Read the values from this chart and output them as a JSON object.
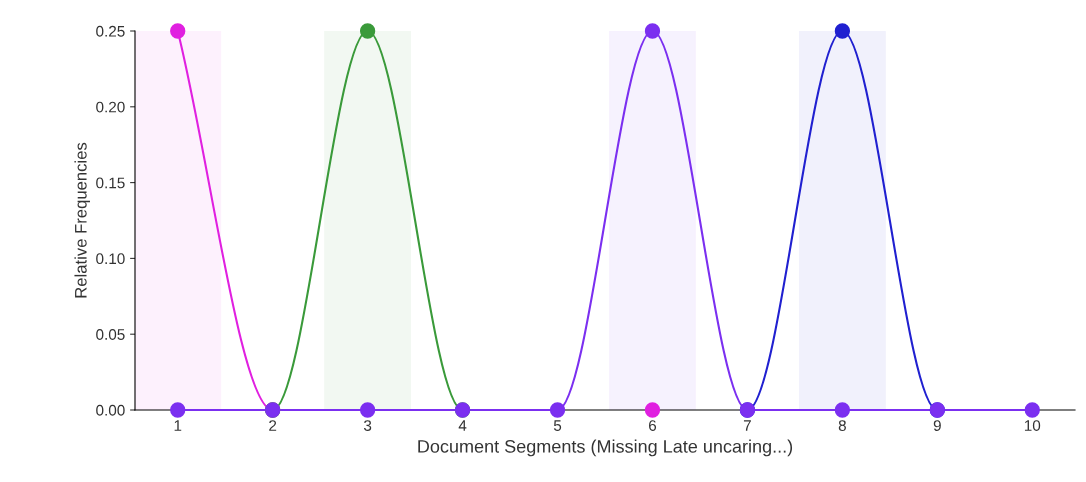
{
  "chart_data": {
    "type": "line",
    "xlabel": "Document Segments (Missing Late uncaring...)",
    "ylabel": "Relative Frequencies",
    "x": [
      1,
      2,
      3,
      4,
      5,
      6,
      7,
      8,
      9,
      10
    ],
    "series": [
      {
        "color": "#e020e0",
        "values": [
          0.25,
          0,
          null,
          null,
          null,
          0,
          null,
          null,
          null,
          null
        ]
      },
      {
        "color": "#3a9a3a",
        "values": [
          null,
          0,
          0.25,
          0,
          null,
          null,
          null,
          null,
          null,
          null
        ]
      },
      {
        "color": "#2020d0",
        "values": [
          null,
          null,
          null,
          null,
          null,
          null,
          0,
          0.25,
          0,
          null
        ]
      },
      {
        "color": "#7b2ff0",
        "values": [
          0,
          0,
          0,
          0,
          0,
          0.25,
          0,
          0,
          0,
          0
        ]
      }
    ],
    "bands": [
      {
        "axis": "x",
        "from": 0.55,
        "to": 1.45,
        "color": "#e020e0"
      },
      {
        "axis": "x",
        "from": 2.55,
        "to": 3.45,
        "color": "#3a9a3a"
      },
      {
        "axis": "x",
        "from": 5.55,
        "to": 6.45,
        "color": "#7b2ff0"
      },
      {
        "axis": "x",
        "from": 7.55,
        "to": 8.45,
        "color": "#2020d0"
      }
    ],
    "xlim": [
      0.55,
      10.45
    ],
    "xticks": [
      1,
      2,
      3,
      4,
      5,
      6,
      7,
      8,
      9,
      10
    ],
    "ylim": [
      0,
      0.25
    ],
    "yticks": [
      {
        "value": 0,
        "label": "0.00"
      },
      {
        "value": 0.05,
        "label": "0.05"
      },
      {
        "value": 0.1,
        "label": "0.10"
      },
      {
        "value": 0.15,
        "label": "0.15"
      },
      {
        "value": 0.2,
        "label": "0.20"
      },
      {
        "value": 0.25,
        "label": "0.25"
      }
    ],
    "marker": "circle",
    "line_style": "solid",
    "grid": false,
    "legend": false
  }
}
